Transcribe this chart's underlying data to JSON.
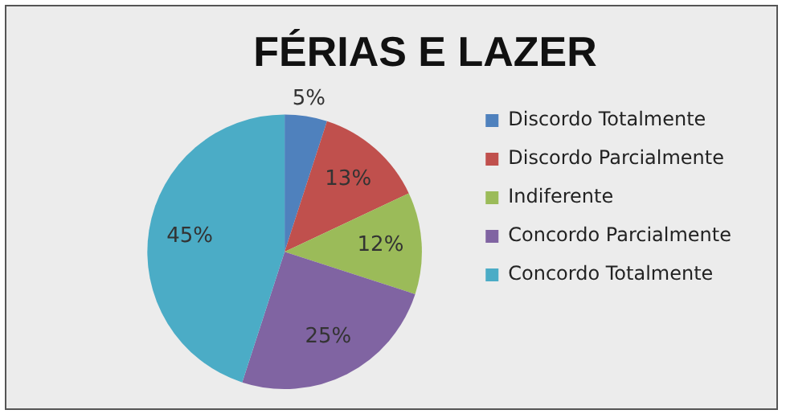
{
  "chart_data": {
    "type": "pie",
    "title": "FÉRIAS E LAZER",
    "categories": [
      "Discordo Totalmente",
      "Discordo Parcialmente",
      "Indiferente",
      "Concordo Parcialmente",
      "Concordo Totalmente"
    ],
    "values": [
      5,
      13,
      12,
      25,
      45
    ],
    "colors": [
      "#4f81bd",
      "#c0504d",
      "#9bbb59",
      "#8064a2",
      "#4bacc6"
    ],
    "value_labels": [
      "5%",
      "13%",
      "12%",
      "25%",
      "45%"
    ],
    "legend": "right"
  }
}
